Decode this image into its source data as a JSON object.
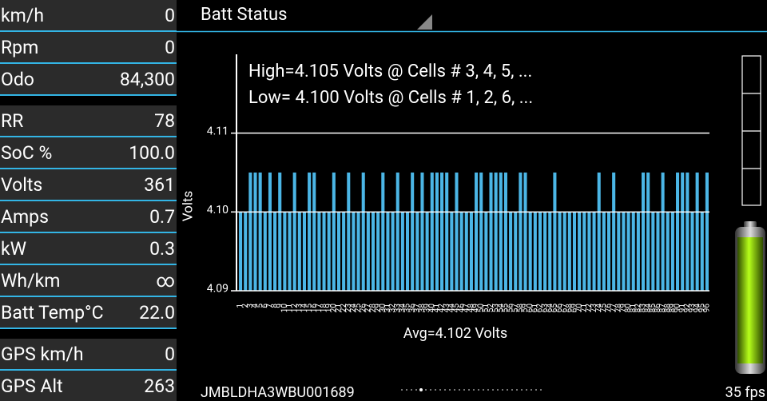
{
  "header": {
    "title": "Batt Status"
  },
  "gauge_groups": [
    [
      {
        "label": "km/h",
        "value": "0"
      },
      {
        "label": "Rpm",
        "value": "0"
      },
      {
        "label": "Odo",
        "value": "84,300"
      }
    ],
    [
      {
        "label": "RR",
        "value": "78"
      },
      {
        "label": "SoC %",
        "value": "100.0"
      },
      {
        "label": "Volts",
        "value": "361"
      },
      {
        "label": "Amps",
        "value": "0.7"
      },
      {
        "label": "kW",
        "value": "0.3"
      },
      {
        "label": "Wh/km",
        "value": "∞"
      },
      {
        "label": "Batt Temp°C",
        "value": "22.0"
      }
    ],
    [
      {
        "label": "GPS km/h",
        "value": "0"
      },
      {
        "label": "GPS Alt",
        "value": "263"
      }
    ]
  ],
  "chart_data": {
    "type": "bar",
    "y_label": "Volts",
    "annotations": [
      "High=4.105 Volts @ Cells # 3, 4, 5,  ...",
      "Low= 4.100 Volts @ Cells # 1, 2, 6,  ..."
    ],
    "summary": "Avg=4.102 Volts",
    "categories": [
      "1",
      "2",
      "3",
      "4",
      "5",
      "6",
      "7",
      "8",
      "9",
      "10",
      "11",
      "12",
      "13",
      "14",
      "15",
      "16",
      "17",
      "18",
      "19",
      "20",
      "21",
      "22",
      "23",
      "24",
      "25",
      "26",
      "27",
      "28",
      "29",
      "30",
      "31",
      "32",
      "33",
      "34",
      "35",
      "36",
      "37",
      "38",
      "39",
      "40",
      "41",
      "42",
      "43",
      "44",
      "45",
      "46",
      "47",
      "48",
      "49",
      "50",
      "51",
      "52",
      "53",
      "54",
      "55",
      "56",
      "57",
      "58",
      "59",
      "60",
      "61",
      "62",
      "63",
      "64",
      "65",
      "66",
      "67",
      "68",
      "69",
      "70",
      "71",
      "72",
      "73",
      "74",
      "75",
      "76",
      "77",
      "78",
      "79",
      "80",
      "81",
      "82",
      "83",
      "84",
      "85",
      "86",
      "87",
      "88",
      "89",
      "90",
      "91",
      "92",
      "93",
      "94",
      "95",
      "96"
    ],
    "values": [
      4.1,
      4.1,
      4.105,
      4.105,
      4.105,
      4.1,
      4.105,
      4.1,
      4.105,
      4.1,
      4.1,
      4.105,
      4.1,
      4.1,
      4.105,
      4.105,
      4.1,
      4.1,
      4.1,
      4.105,
      4.1,
      4.1,
      4.105,
      4.1,
      4.1,
      4.105,
      4.1,
      4.1,
      4.1,
      4.105,
      4.1,
      4.1,
      4.105,
      4.1,
      4.1,
      4.105,
      4.1,
      4.105,
      4.1,
      4.105,
      4.105,
      4.105,
      4.105,
      4.1,
      4.105,
      4.1,
      4.1,
      4.1,
      4.105,
      4.105,
      4.1,
      4.105,
      4.105,
      4.105,
      4.105,
      4.1,
      4.1,
      4.105,
      4.105,
      4.1,
      4.1,
      4.1,
      4.1,
      4.1,
      4.105,
      4.1,
      4.1,
      4.1,
      4.1,
      4.1,
      4.1,
      4.1,
      4.1,
      4.105,
      4.1,
      4.1,
      4.105,
      4.1,
      4.1,
      4.1,
      4.1,
      4.1,
      4.105,
      4.105,
      4.1,
      4.1,
      4.105,
      4.1,
      4.1,
      4.105,
      4.105,
      4.105,
      4.1,
      4.105,
      4.1,
      4.105
    ],
    "color": "#4bb6e6",
    "ylim": [
      4.09,
      4.12
    ],
    "yticks": [
      4.09,
      {
        "value": 4.1,
        "label": "4.10"
      },
      4.11
    ],
    "grid": true
  },
  "footer": {
    "vin": "JMBLDHA3WBU001689",
    "fps": "35 fps"
  }
}
